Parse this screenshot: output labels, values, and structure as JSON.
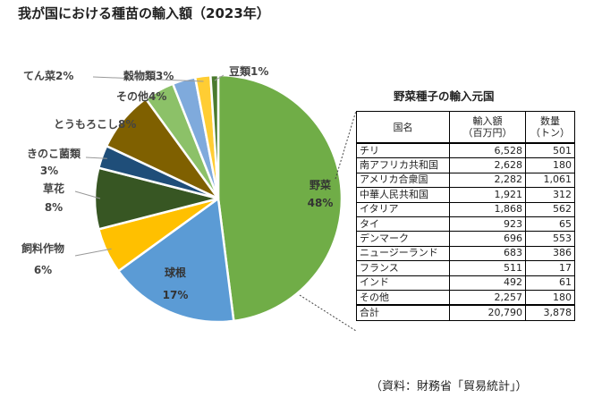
{
  "title": "我が国における種苗の輸入額（2023年）",
  "chart_data": {
    "type": "pie",
    "slices": [
      {
        "name": "野菜",
        "percent_label": "48%",
        "value": 48,
        "color": "#70ad47"
      },
      {
        "name": "球根",
        "percent_label": "17%",
        "value": 17,
        "color": "#5b9bd5"
      },
      {
        "name": "飼料作物",
        "percent_label": "6%",
        "value": 6,
        "color": "#ffc000"
      },
      {
        "name": "草花",
        "percent_label": "8%",
        "value": 8,
        "color": "#375623"
      },
      {
        "name": "きのこ菌類",
        "percent_label": "3%",
        "value": 3,
        "color": "#1f4e79"
      },
      {
        "name": "とうもろこし",
        "percent_label": "8%",
        "value": 8,
        "color": "#7f6000"
      },
      {
        "name": "その他",
        "percent_label": "4%",
        "value": 4,
        "color": "#8cc168"
      },
      {
        "name": "穀物類",
        "percent_label": "3%",
        "value": 3,
        "color": "#7faadc"
      },
      {
        "name": "てん菜",
        "percent_label": "2%",
        "value": 2,
        "color": "#ffcd33"
      },
      {
        "name": "豆類",
        "percent_label": "1%",
        "value": 1,
        "color": "#4a7a2e"
      }
    ]
  },
  "table": {
    "title": "野菜種子の輸入元国",
    "headers": {
      "country": "国名",
      "amount_line1": "輸入額",
      "amount_line2": "（百万円）",
      "qty_line1": "数量",
      "qty_line2": "（トン）"
    },
    "rows": [
      {
        "country": "チリ",
        "amount": "6,528",
        "qty": "501"
      },
      {
        "country": "南アフリカ共和国",
        "amount": "2,628",
        "qty": "180"
      },
      {
        "country": "アメリカ合衆国",
        "amount": "2,282",
        "qty": "1,061"
      },
      {
        "country": "中華人民共和国",
        "amount": "1,921",
        "qty": "312"
      },
      {
        "country": "イタリア",
        "amount": "1,868",
        "qty": "562"
      },
      {
        "country": "タイ",
        "amount": "923",
        "qty": "65"
      },
      {
        "country": "デンマーク",
        "amount": "696",
        "qty": "553"
      },
      {
        "country": "ニュージーランド",
        "amount": "683",
        "qty": "386"
      },
      {
        "country": "フランス",
        "amount": "511",
        "qty": "17"
      },
      {
        "country": "インド",
        "amount": "492",
        "qty": "61"
      },
      {
        "country": "その他",
        "amount": "2,257",
        "qty": "180"
      }
    ],
    "total": {
      "label": "合計",
      "amount": "20,790",
      "qty": "3,878"
    }
  },
  "source": "（資料：財務省「貿易統計」）"
}
